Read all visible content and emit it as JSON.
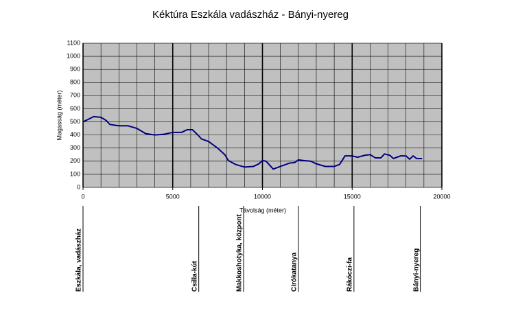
{
  "chart_data": {
    "type": "line",
    "title": "Kéktúra Eszkála vadászház - Bányi-nyereg",
    "x_label": "Távolság (méter)",
    "y_label": "Magasság (méter)",
    "xlim": [
      0,
      20000
    ],
    "xticks": [
      0,
      5000,
      10000,
      15000,
      20000
    ],
    "ylim": [
      0,
      1100
    ],
    "yticks": [
      0,
      100,
      200,
      300,
      400,
      500,
      600,
      700,
      800,
      900,
      1000,
      1100
    ],
    "grid": true,
    "series": [
      {
        "color": "#000080",
        "x": [
          0,
          300,
          600,
          1000,
          1300,
          1500,
          2000,
          2500,
          3000,
          3500,
          4000,
          4500,
          5000,
          5500,
          5800,
          6100,
          6400,
          6600,
          7000,
          7500,
          7900,
          8100,
          8500,
          9000,
          9500,
          9800,
          10000,
          10200,
          10500,
          10600,
          11000,
          11500,
          11800,
          12000,
          12300,
          12700,
          13000,
          13500,
          14000,
          14300,
          14600,
          15000,
          15300,
          15700,
          16000,
          16300,
          16600,
          16800,
          17100,
          17300,
          17700,
          18000,
          18200,
          18400,
          18600,
          18900
        ],
        "values": [
          500,
          520,
          540,
          535,
          510,
          480,
          470,
          470,
          450,
          410,
          400,
          405,
          420,
          420,
          440,
          440,
          400,
          370,
          350,
          300,
          250,
          205,
          175,
          155,
          160,
          180,
          205,
          200,
          155,
          140,
          160,
          185,
          190,
          210,
          205,
          200,
          180,
          160,
          160,
          175,
          240,
          240,
          230,
          245,
          250,
          225,
          225,
          255,
          245,
          220,
          240,
          240,
          215,
          240,
          220,
          220
        ]
      }
    ],
    "waypoints": [
      {
        "label": "Eszkála, vadászház",
        "x": 0
      },
      {
        "label": "Csilla-kút",
        "x": 6450
      },
      {
        "label": "Makkoshotyka, központ",
        "x": 8950
      },
      {
        "label": "Cirókatanya",
        "x": 12000
      },
      {
        "label": "Rákóczi-fa",
        "x": 15100
      },
      {
        "label": "Bányi-nyereg",
        "x": 18800
      }
    ]
  }
}
